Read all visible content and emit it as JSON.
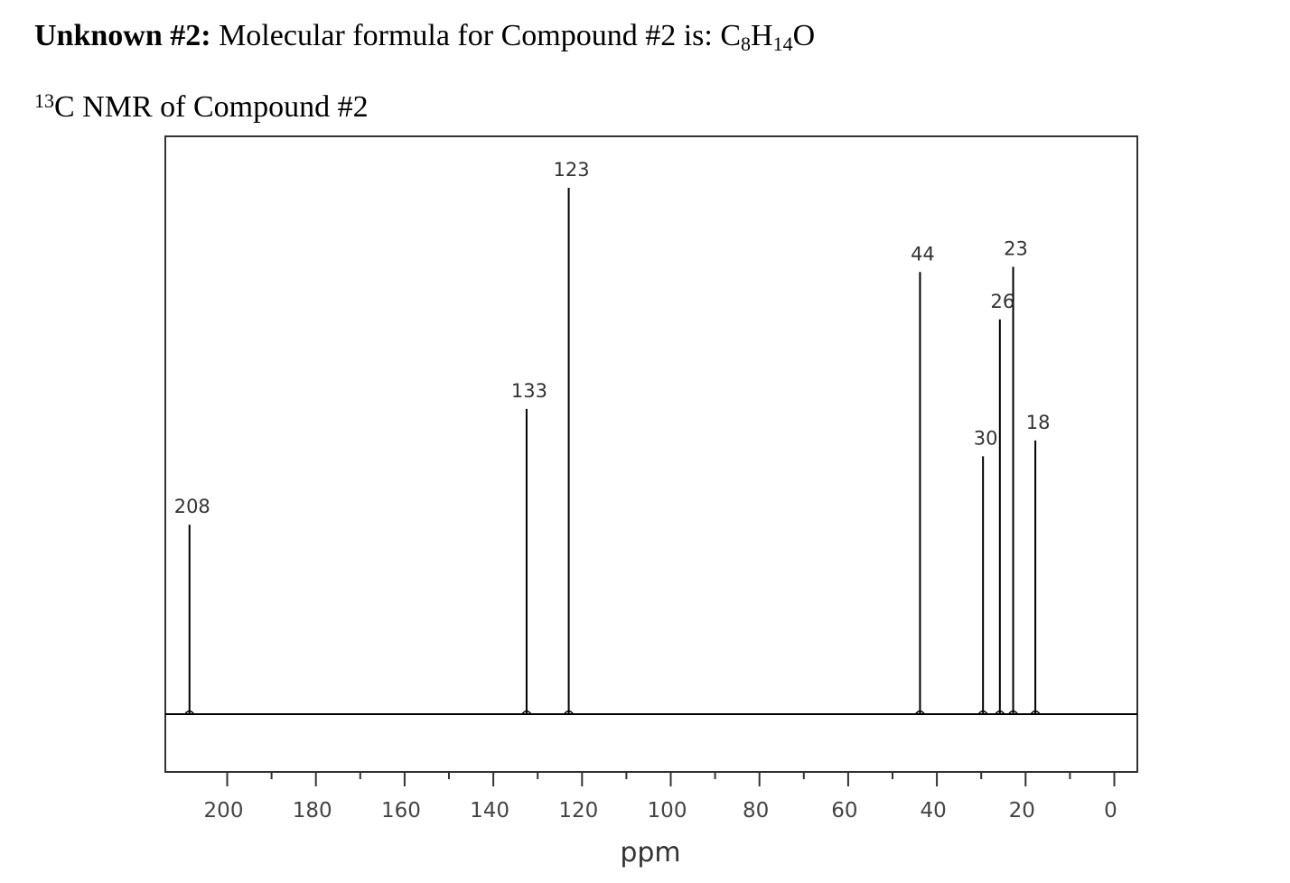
{
  "header": {
    "unknown_label": "Unknown #2:",
    "formula_text": "Molecular formula for Compound #2 is: ",
    "formula": {
      "c": "C",
      "c_count": "8",
      "h": "H",
      "h_count": "14",
      "o": "O"
    }
  },
  "subheader": {
    "isotope": "13",
    "text": "C NMR of Compound #2"
  },
  "chart_data": {
    "type": "line",
    "spectrum": "13C NMR",
    "xlabel": "ppm",
    "x_reversed": true,
    "xlim": [
      214,
      -2
    ],
    "major_ticks": [
      200,
      180,
      160,
      140,
      120,
      100,
      80,
      60,
      40,
      20,
      0
    ],
    "minor_ticks": [
      190,
      170,
      150,
      130,
      110,
      90,
      70,
      50,
      30,
      10
    ],
    "ylim": [
      0,
      1.05
    ],
    "grid": false,
    "legend": "none",
    "peaks": [
      {
        "ppm": 208.5,
        "label": "208",
        "intensity": 0.36
      },
      {
        "ppm": 132.5,
        "label": "133",
        "intensity": 0.58
      },
      {
        "ppm": 123,
        "label": "123",
        "intensity": 1.0
      },
      {
        "ppm": 43.8,
        "label": "44",
        "intensity": 0.84
      },
      {
        "ppm": 29.6,
        "label": "30",
        "intensity": 0.49
      },
      {
        "ppm": 25.8,
        "label": "26",
        "intensity": 0.75
      },
      {
        "ppm": 22.8,
        "label": "23",
        "intensity": 0.85
      },
      {
        "ppm": 17.8,
        "label": "18",
        "intensity": 0.52
      }
    ]
  }
}
